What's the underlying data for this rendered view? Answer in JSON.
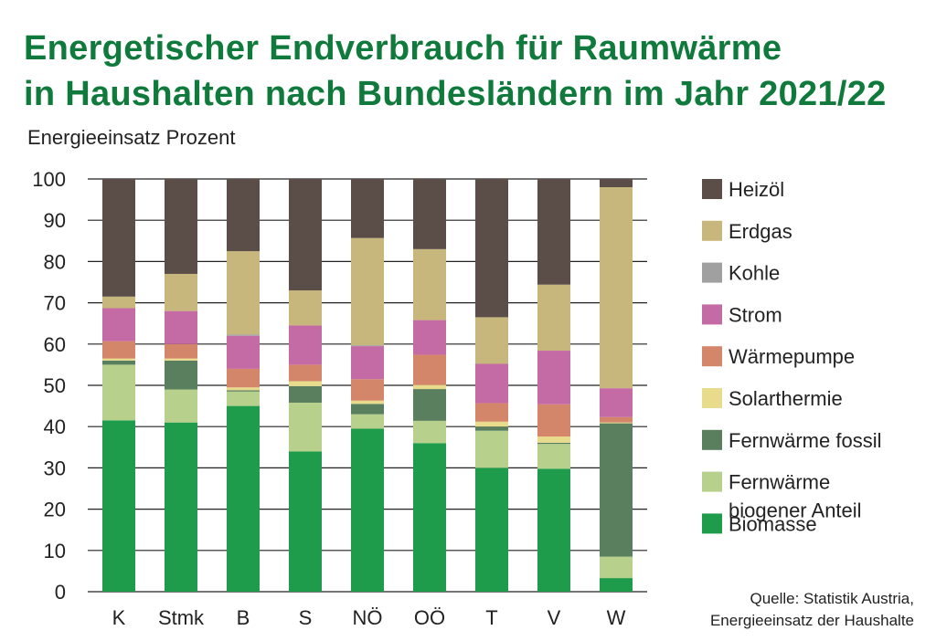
{
  "title_lines": [
    "Energetischer Endverbrauch für Raumwärme",
    "in Haushalten nach Bundesländern im Jahr 2021/22"
  ],
  "source_lines": [
    "Quelle: Statistik Austria,",
    "Energieeinsatz der Haushalte"
  ],
  "chart_data": {
    "type": "bar",
    "stacked": true,
    "title": "Energetischer Endverbrauch für Raumwärme in Haushalten nach Bundesländern im Jahr 2021/22",
    "ylabel": "Energieeinsatz Prozent",
    "xlabel": "",
    "ylim": [
      0,
      100
    ],
    "yticks": [
      0,
      10,
      20,
      30,
      40,
      50,
      60,
      70,
      80,
      90,
      100
    ],
    "grid": true,
    "legend_position": "right",
    "categories": [
      "K",
      "Stmk",
      "B",
      "S",
      "NÖ",
      "OÖ",
      "T",
      "V",
      "W"
    ],
    "series": [
      {
        "name": "Biomasse",
        "color": "#1e9c4b",
        "values": [
          41.5,
          41.0,
          45.0,
          34.0,
          39.5,
          36.0,
          30.0,
          29.8,
          3.3
        ]
      },
      {
        "name": "Fernwärme biogener Anteil",
        "color": "#b7d08c",
        "values": [
          13.5,
          8.0,
          3.5,
          11.8,
          3.5,
          5.4,
          9.0,
          6.0,
          5.2
        ]
      },
      {
        "name": "Fernwärme fossil",
        "color": "#5a7f5e",
        "values": [
          1.0,
          7.0,
          0.3,
          4.0,
          2.5,
          7.7,
          1.0,
          0.3,
          32.3
        ]
      },
      {
        "name": "Solarthermie",
        "color": "#e8dc8c",
        "values": [
          0.5,
          0.5,
          0.7,
          1.2,
          0.8,
          1.0,
          1.2,
          1.5,
          0.2
        ]
      },
      {
        "name": "Wärmepumpe",
        "color": "#d4866b",
        "values": [
          4.2,
          3.5,
          4.5,
          4.0,
          5.2,
          7.3,
          4.5,
          7.8,
          1.3
        ]
      },
      {
        "name": "Strom",
        "color": "#c46aa4",
        "values": [
          8.0,
          8.0,
          8.0,
          9.5,
          8.0,
          8.4,
          9.5,
          13.0,
          7.0
        ]
      },
      {
        "name": "Kohle",
        "color": "#a0a0a0",
        "values": [
          0.0,
          0.0,
          0.3,
          0.0,
          0.2,
          0.0,
          0.0,
          0.0,
          0.0
        ]
      },
      {
        "name": "Erdgas",
        "color": "#c8b77c",
        "values": [
          2.8,
          9.0,
          20.2,
          8.5,
          26.0,
          17.2,
          11.3,
          16.0,
          48.7
        ]
      },
      {
        "name": "Heizöl",
        "color": "#5b4e48",
        "values": [
          28.5,
          23.0,
          17.5,
          27.0,
          14.3,
          17.0,
          33.5,
          25.6,
          2.0
        ]
      }
    ],
    "legend": [
      {
        "name": "Heizöl",
        "color": "#5b4e48"
      },
      {
        "name": "Erdgas",
        "color": "#c8b77c"
      },
      {
        "name": "Kohle",
        "color": "#a0a0a0"
      },
      {
        "name": "Strom",
        "color": "#c46aa4"
      },
      {
        "name": "Wärmepumpe",
        "color": "#d4866b"
      },
      {
        "name": "Solarthermie",
        "color": "#e8dc8c"
      },
      {
        "name": "Fernwärme fossil",
        "color": "#5a7f5e"
      },
      {
        "name": "Fernwärme\nbiogener Anteil",
        "color": "#b7d08c"
      },
      {
        "name": "Biomasse",
        "color": "#1e9c4b"
      }
    ]
  }
}
